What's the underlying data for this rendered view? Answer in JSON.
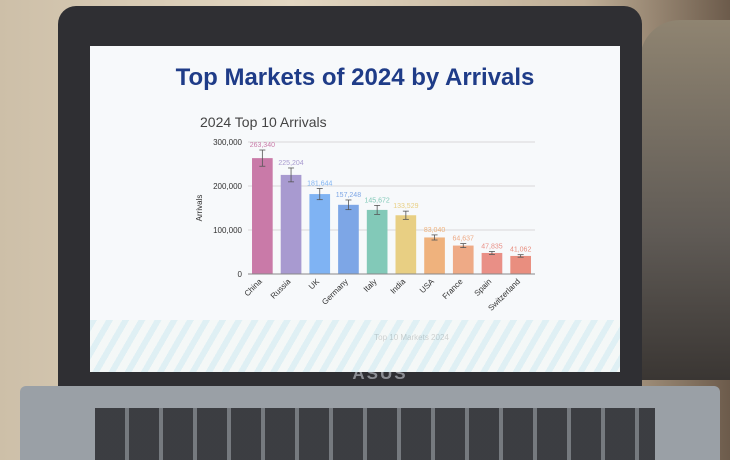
{
  "slide": {
    "title": "Top Markets of 2024 by Arrivals",
    "brand": "ASUS"
  },
  "chart_data": {
    "type": "bar",
    "title": "2024 Top 10 Arrivals",
    "xlabel": "Top 10 Markets 2024",
    "ylabel": "Arrivals",
    "ylim": [
      0,
      300000
    ],
    "yticks": [
      "0",
      "100,000",
      "200,000",
      "300,000"
    ],
    "grid": true,
    "error_bars": true,
    "categories": [
      "China",
      "Russia",
      "UK",
      "Germany",
      "Italy",
      "India",
      "USA",
      "France",
      "Spain",
      "Switzerland"
    ],
    "values": [
      263340,
      225204,
      181644,
      157248,
      145672,
      133529,
      83040,
      64637,
      47835,
      41062
    ],
    "labels": [
      "263,340",
      "225,204",
      "181,644",
      "157,248",
      "145,672",
      "133,529",
      "83,040",
      "64,637",
      "47,835",
      "41,062"
    ],
    "colors": [
      "#c97aa8",
      "#a89ad0",
      "#7fb3f3",
      "#7da6e6",
      "#82c9b8",
      "#e8cf83",
      "#efb27d",
      "#eeaa86",
      "#e98f86",
      "#e98e7f"
    ]
  }
}
